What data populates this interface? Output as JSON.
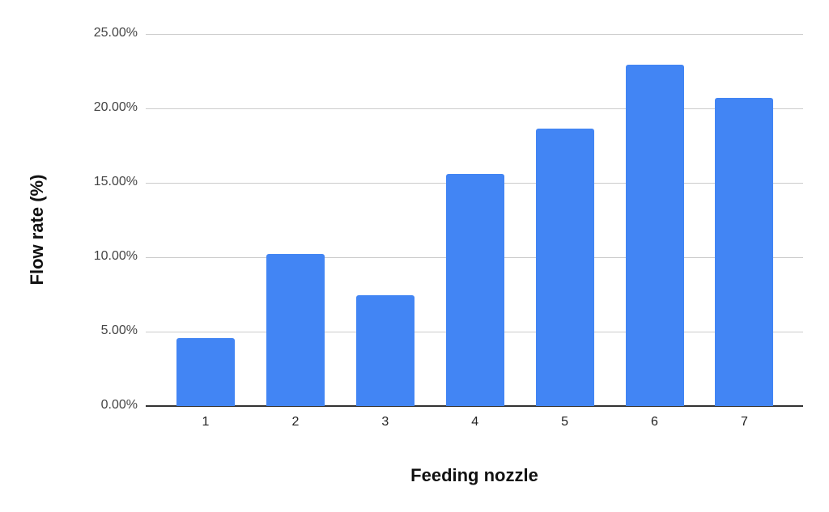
{
  "chart_data": {
    "type": "bar",
    "title": "",
    "xlabel": "Feeding nozzle",
    "ylabel": "Flow rate (%)",
    "categories": [
      "1",
      "2",
      "3",
      "4",
      "5",
      "6",
      "7"
    ],
    "values": [
      4.56,
      10.21,
      7.44,
      15.59,
      18.65,
      22.91,
      20.68
    ],
    "value_unit": "%",
    "ylim": [
      0,
      25
    ],
    "yticks": [
      "0.00%",
      "5.00%",
      "10.00%",
      "15.00%",
      "20.00%",
      "25.00%"
    ],
    "grid": true,
    "legend": null,
    "bar_color": "#4285f4"
  }
}
